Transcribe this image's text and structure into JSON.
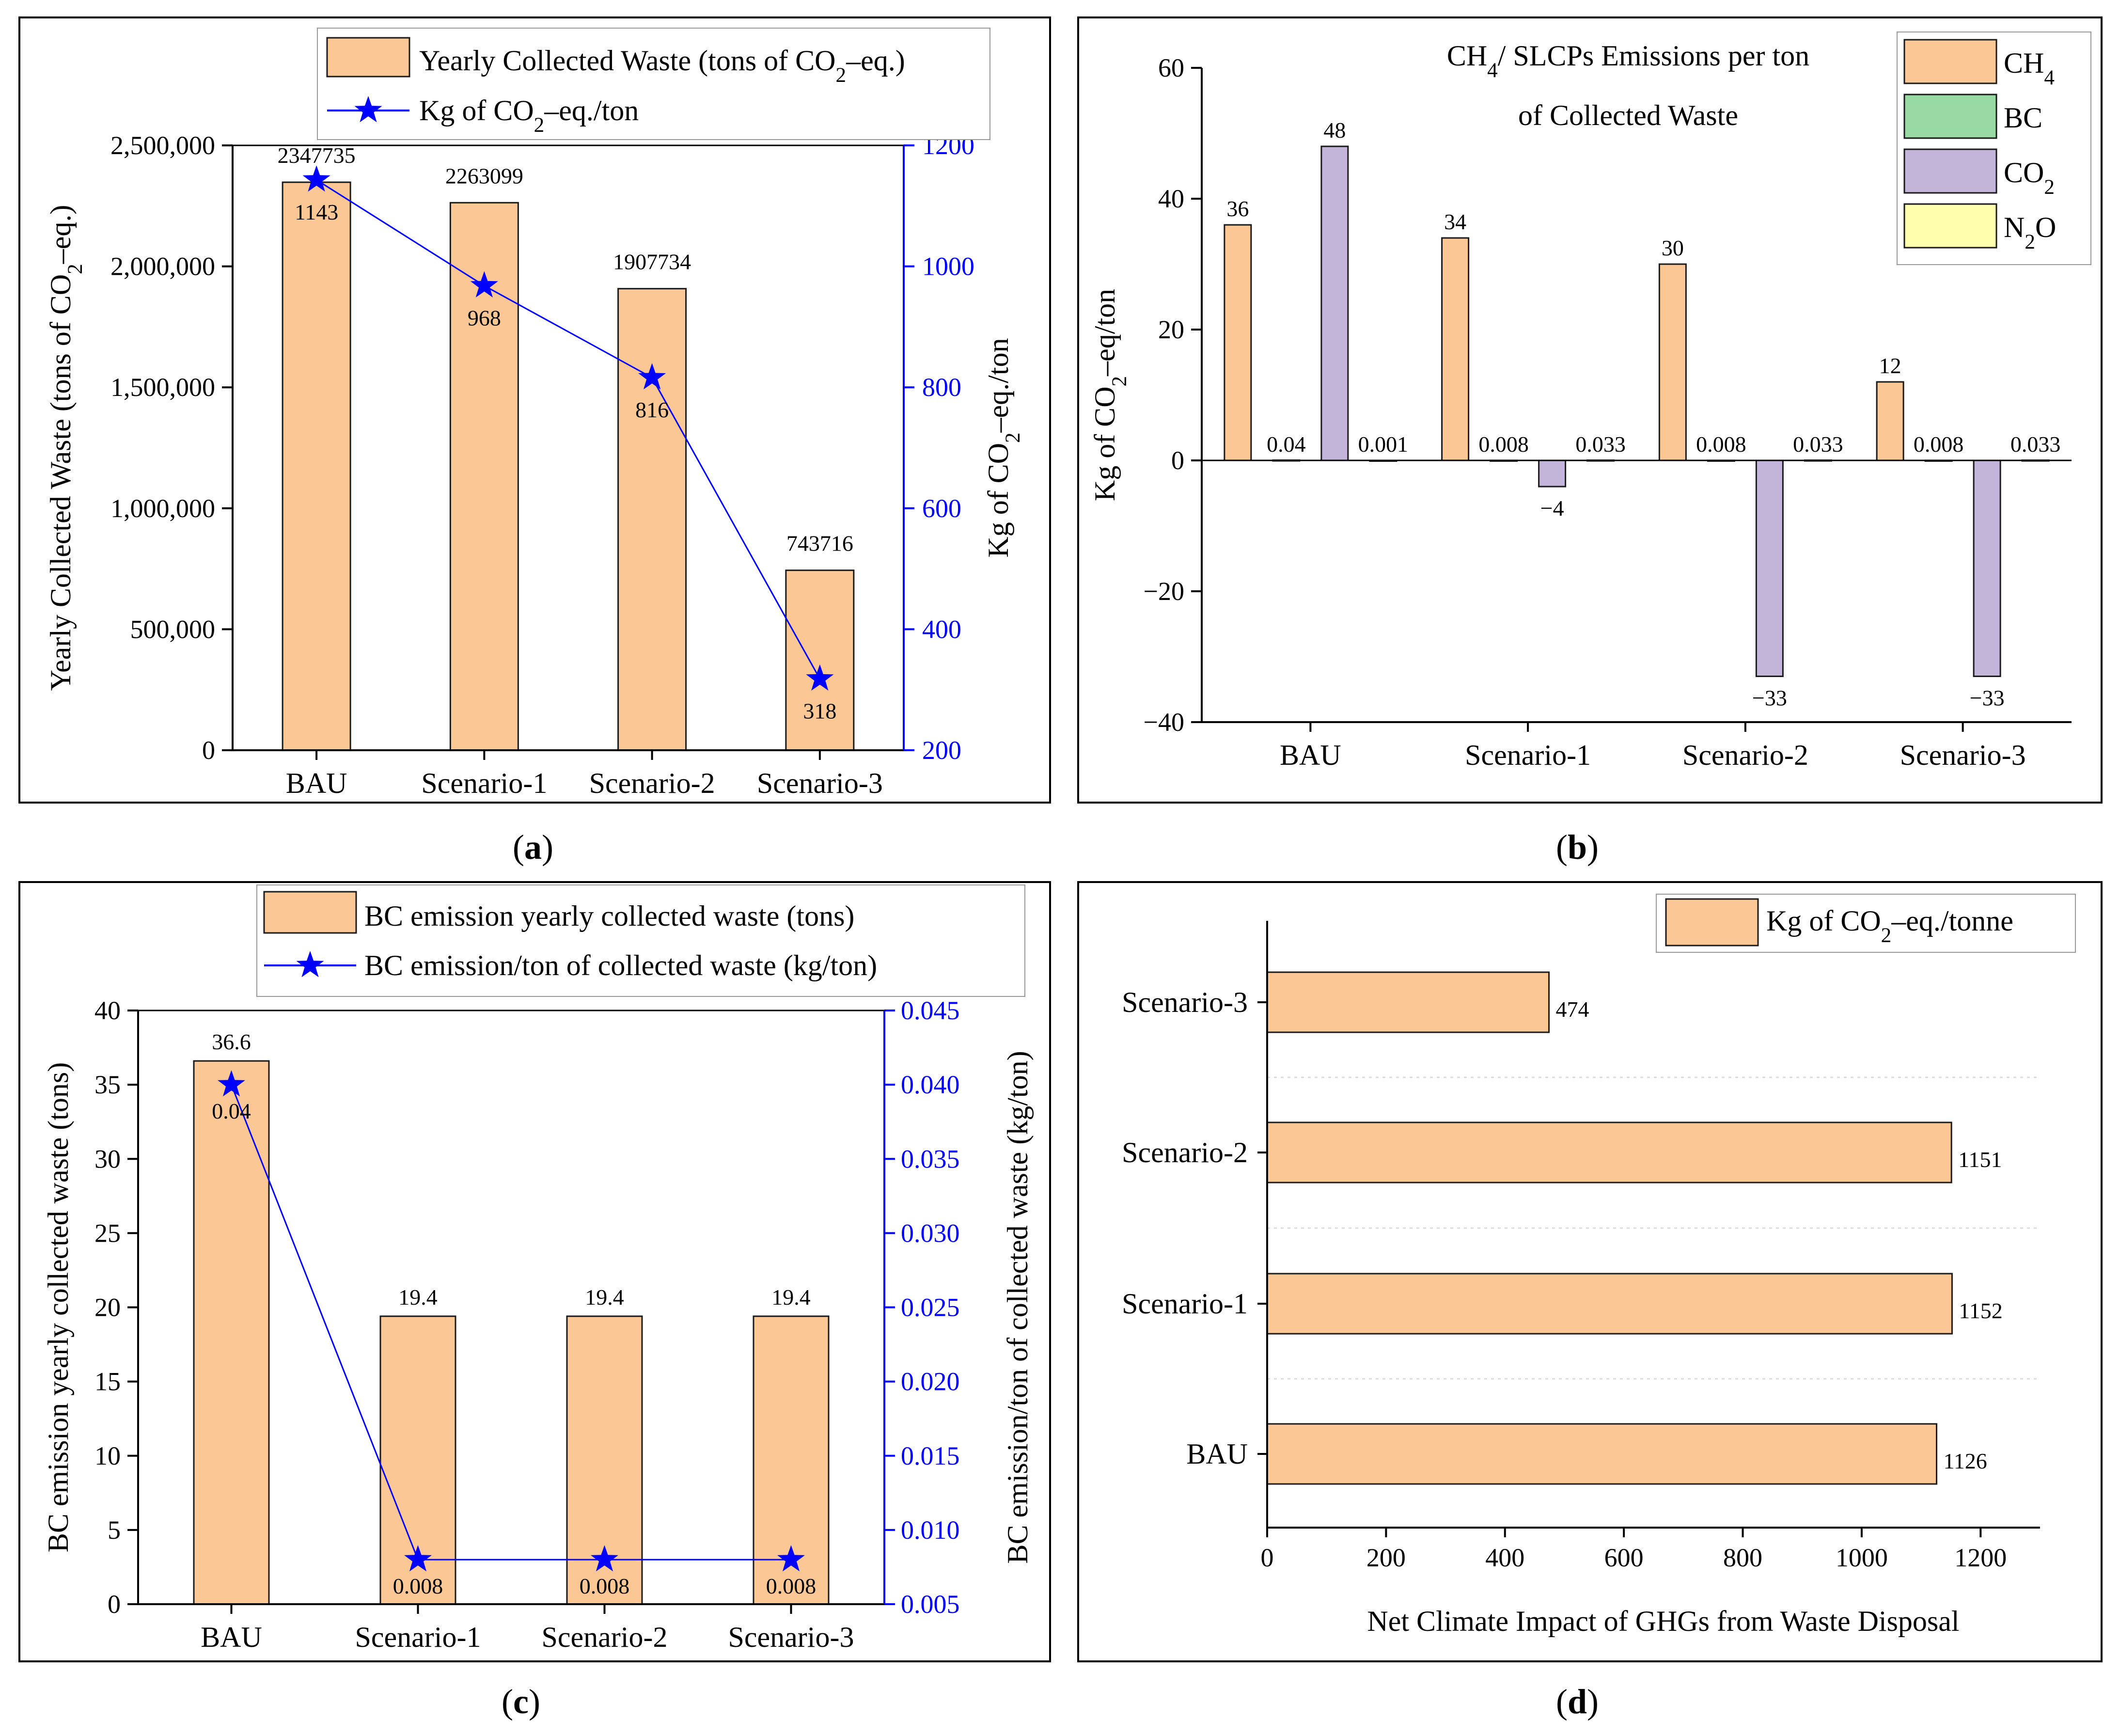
{
  "colors": {
    "bar": "#fbc895",
    "bar_stroke": "#1a1a1a",
    "line": "#0000ff",
    "ch4": "#fbc895",
    "bc": "#99d9a3",
    "co2": "#c3b4da",
    "n2o": "#ffffae",
    "grid": "#dddddd"
  },
  "chart_data": [
    {
      "type": "bar+line",
      "caption": "a",
      "caption_open": "(",
      "caption_close": ")",
      "categories": [
        "BAU",
        "Scenario-1",
        "Scenario-2",
        "Scenario-3"
      ],
      "series": [
        {
          "name": "Yearly Collected Waste (tons of CO",
          "name_sub": "2",
          "name_tail": "–eq.)",
          "kind": "bar",
          "axis": "left",
          "values": [
            2347735,
            2263099,
            1907734,
            743716
          ],
          "labels": [
            "2347735",
            "2263099",
            "1907734",
            "743716"
          ]
        },
        {
          "name": "Kg of CO",
          "name_sub": "2",
          "name_tail": "–eq./ton",
          "kind": "line",
          "axis": "right",
          "values": [
            1143,
            968,
            816,
            318
          ],
          "labels": [
            "1143",
            "968",
            "816",
            "318"
          ]
        }
      ],
      "ylabel": {
        "text": "Yearly Collected Waste (tons of CO",
        "sub": "2",
        "tail": "–eq.)"
      },
      "y2label": {
        "text": "Kg of CO",
        "sub": "2",
        "tail": "–eq./ton"
      },
      "ylim": [
        0,
        2500000
      ],
      "y2lim": [
        200,
        1200
      ],
      "yticks": [
        "0",
        "500,000",
        "1,000,000",
        "1,500,000",
        "2,000,000",
        "2,500,000"
      ],
      "y2ticks": [
        "200",
        "400",
        "600",
        "800",
        "1000",
        "1200"
      ]
    },
    {
      "type": "bar",
      "caption": "b",
      "caption_open": "(",
      "caption_close": ")",
      "title": {
        "pre": "CH",
        "sub": "4",
        "post": "/ SLCPs Emissions per ton",
        "line2": "of Collected Waste"
      },
      "categories": [
        "BAU",
        "Scenario-1",
        "Scenario-2",
        "Scenario-3"
      ],
      "series": [
        {
          "name": "CH",
          "name_sub": "4",
          "color_key": "ch4",
          "values": [
            36,
            34,
            30,
            12
          ],
          "labels": [
            "36",
            "34",
            "30",
            "12"
          ]
        },
        {
          "name": "BC",
          "name_sub": "",
          "color_key": "bc",
          "values": [
            0.04,
            0.008,
            0.008,
            0.008
          ],
          "labels": [
            "0.04",
            "0.008",
            "0.008",
            "0.008"
          ]
        },
        {
          "name": "CO",
          "name_sub": "2",
          "color_key": "co2",
          "values": [
            48,
            -4,
            -33,
            -33
          ],
          "labels": [
            "48",
            "−4",
            "−33",
            "−33"
          ]
        },
        {
          "name": "N",
          "name_sub": "2",
          "name_tail": "O",
          "color_key": "n2o",
          "values": [
            0.001,
            0.033,
            0.033,
            0.033
          ],
          "labels": [
            "0.001",
            "0.033",
            "0.033",
            "0.033"
          ]
        }
      ],
      "ylabel": {
        "text": "Kg of CO",
        "sub": "2",
        "tail": "–eq/ton"
      },
      "ylim": [
        -40,
        60
      ],
      "yticks": [
        "−40",
        "−20",
        "0",
        "20",
        "40",
        "60"
      ]
    },
    {
      "type": "bar+line",
      "caption": "c",
      "caption_open": "(",
      "caption_close": ")",
      "categories": [
        "BAU",
        "Scenario-1",
        "Scenario-2",
        "Scenario-3"
      ],
      "series": [
        {
          "name": "BC emission yearly collected waste (tons)",
          "kind": "bar",
          "axis": "left",
          "values": [
            36.6,
            19.4,
            19.4,
            19.4
          ],
          "labels": [
            "36.6",
            "19.4",
            "19.4",
            "19.4"
          ]
        },
        {
          "name": "BC emission/ton of collected waste (kg/ton)",
          "kind": "line",
          "axis": "right",
          "values": [
            0.04,
            0.008,
            0.008,
            0.008
          ],
          "labels": [
            "0.04",
            "0.008",
            "0.008",
            "0.008"
          ]
        }
      ],
      "ylabel": "BC emission yearly collected waste (tons)",
      "y2label": "BC emission/ton of collected waste (kg/ton)",
      "ylim": [
        0,
        40
      ],
      "y2lim": [
        0.005,
        0.045
      ],
      "yticks": [
        "0",
        "5",
        "10",
        "15",
        "20",
        "25",
        "30",
        "35",
        "40"
      ],
      "y2ticks": [
        "0.005",
        "0.010",
        "0.015",
        "0.020",
        "0.025",
        "0.030",
        "0.035",
        "0.040",
        "0.045"
      ]
    },
    {
      "type": "horizontal-bar",
      "caption": "d",
      "caption_open": "(",
      "caption_close": ")",
      "categories": [
        "BAU",
        "Scenario-1",
        "Scenario-2",
        "Scenario-3"
      ],
      "series": [
        {
          "name": "Kg of CO",
          "name_sub": "2",
          "name_tail": "–eq./tonne",
          "values": [
            1126,
            1152,
            1151,
            474
          ],
          "labels": [
            "1126",
            "1152",
            "1151",
            "474"
          ]
        }
      ],
      "xlabel": "Net Climate Impact of GHGs from Waste Disposal",
      "xlim": [
        0,
        1300
      ],
      "xticks": [
        "0",
        "200",
        "400",
        "600",
        "800",
        "1000",
        "1200"
      ]
    }
  ]
}
